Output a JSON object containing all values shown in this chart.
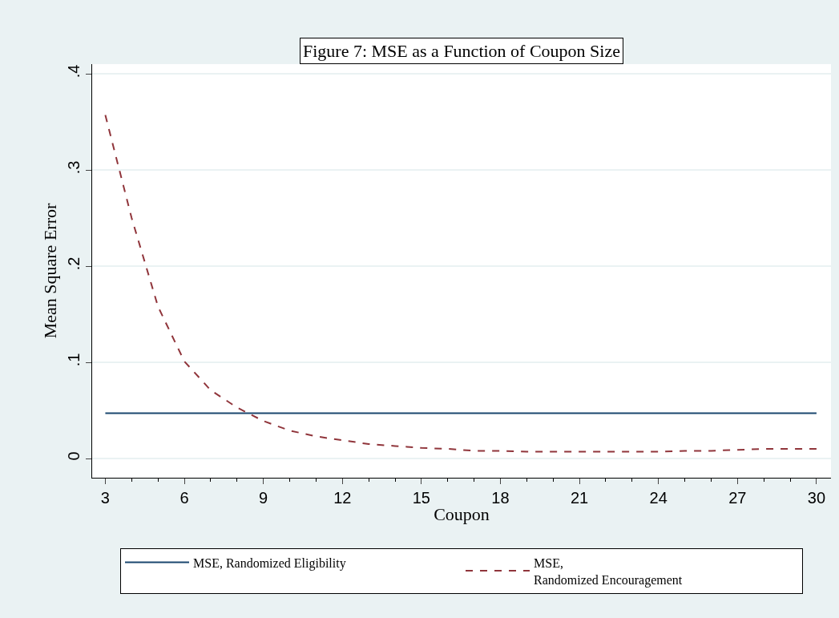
{
  "chart_data": {
    "type": "line",
    "title": "Figure 7: MSE as a Function of Coupon Size",
    "xlabel": "Coupon",
    "ylabel": "Mean Square Error",
    "x": [
      3,
      4,
      5,
      6,
      7,
      8,
      9,
      10,
      11,
      12,
      13,
      14,
      15,
      16,
      17,
      18,
      19,
      20,
      21,
      22,
      23,
      24,
      25,
      26,
      27,
      28,
      29,
      30
    ],
    "series": [
      {
        "name": "MSE, Randomized Eligibility",
        "color": "#1a476f",
        "line_style": "solid",
        "values": [
          0.047,
          0.047,
          0.047,
          0.047,
          0.047,
          0.047,
          0.047,
          0.047,
          0.047,
          0.047,
          0.047,
          0.047,
          0.047,
          0.047,
          0.047,
          0.047,
          0.047,
          0.047,
          0.047,
          0.047,
          0.047,
          0.047,
          0.047,
          0.047,
          0.047,
          0.047,
          0.047,
          0.047
        ]
      },
      {
        "name": "MSE,\nRandomized Encouragement",
        "color": "#90353b",
        "line_style": "dashed",
        "values": [
          0.357,
          0.25,
          0.158,
          0.101,
          0.071,
          0.053,
          0.039,
          0.029,
          0.023,
          0.019,
          0.015,
          0.013,
          0.011,
          0.01,
          0.008,
          0.008,
          0.007,
          0.007,
          0.007,
          0.007,
          0.007,
          0.007,
          0.008,
          0.008,
          0.009,
          0.01,
          0.01,
          0.01
        ]
      }
    ],
    "xlim": [
      2.5,
      30.55
    ],
    "xticks": [
      3,
      6,
      9,
      12,
      15,
      18,
      21,
      24,
      27,
      30
    ],
    "ylim": [
      -0.02,
      0.41
    ],
    "yticks": [
      {
        "value": 0,
        "label": "0"
      },
      {
        "value": 0.1,
        "label": ".1"
      },
      {
        "value": 0.2,
        "label": ".2"
      },
      {
        "value": 0.3,
        "label": ".3"
      },
      {
        "value": 0.4,
        "label": ".4"
      }
    ],
    "grid": "y",
    "legend": "bottom",
    "marker": "none"
  }
}
